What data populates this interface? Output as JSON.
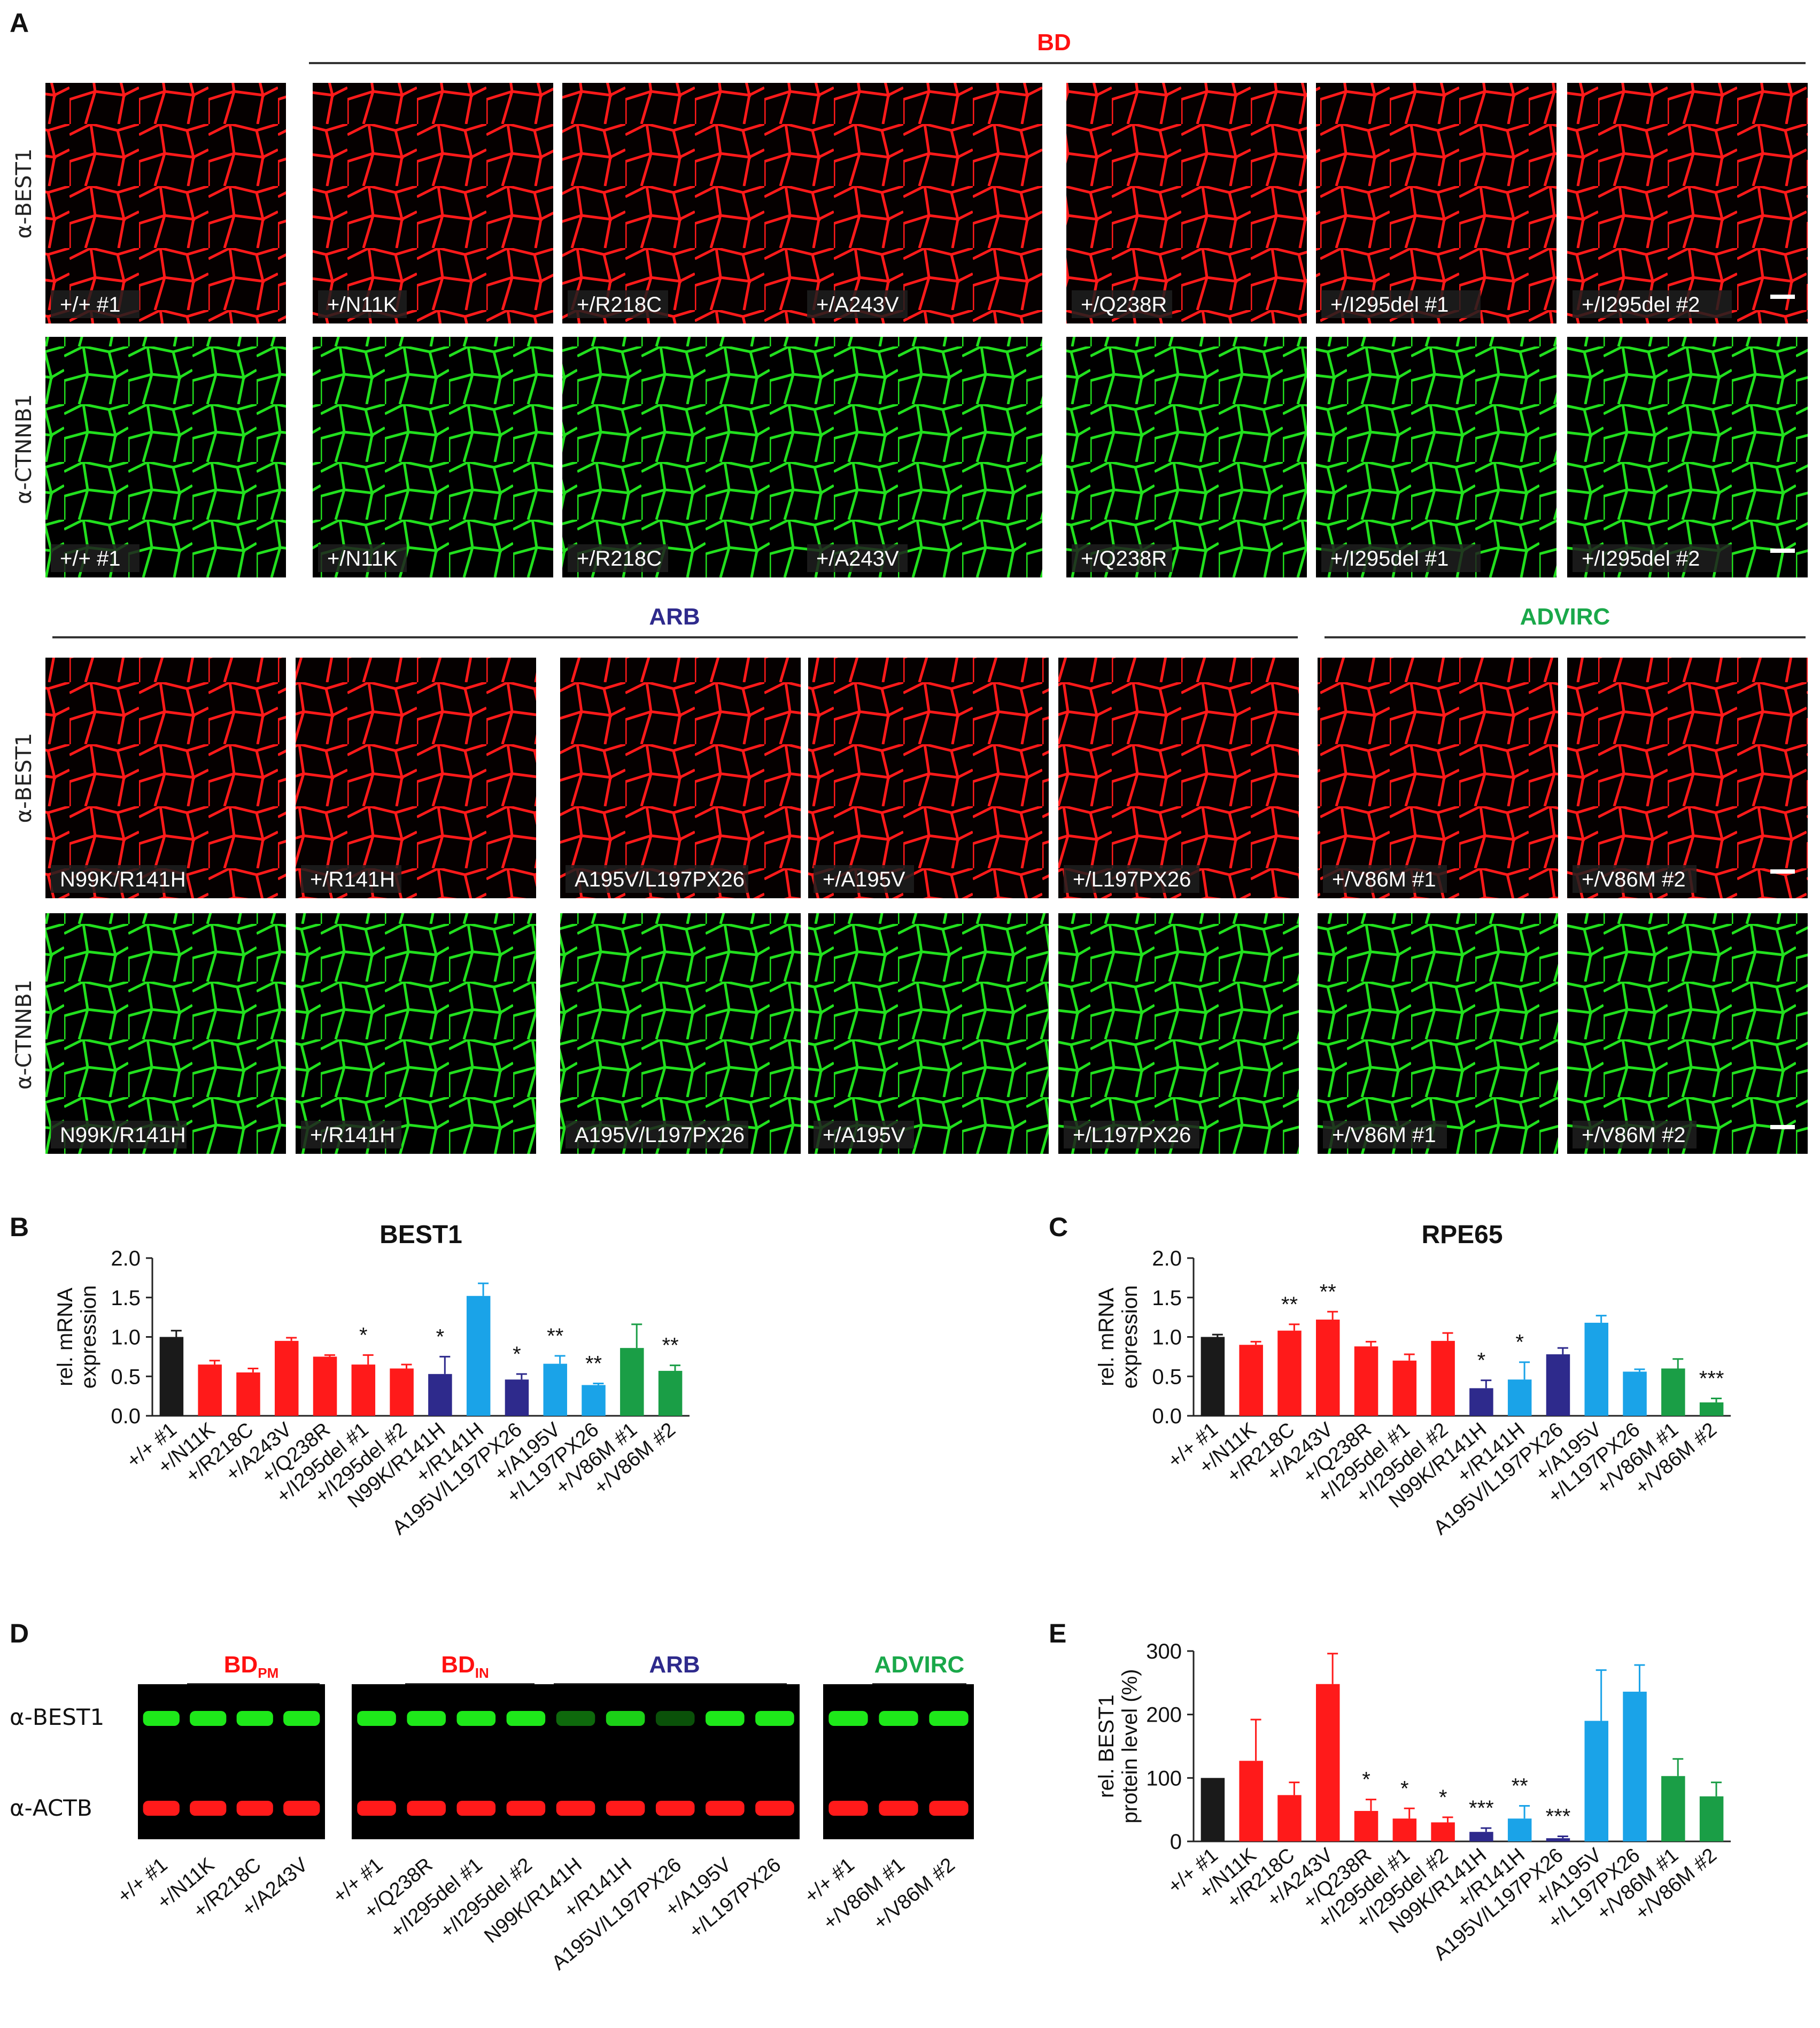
{
  "panels": {
    "A": "A",
    "B": "B",
    "C": "C",
    "D": "D",
    "E": "E"
  },
  "groups": {
    "bd": "BD",
    "arb": "ARB",
    "advirc": "ADVIRC"
  },
  "colors": {
    "bd": "#ff1010",
    "arb": "#2e2a8c",
    "advirc": "#1aa84a",
    "ctrl": "#1a1a1a",
    "arb_light": "#1aa3e8",
    "best1_stain": "#ff1a1a",
    "ctnnb1_stain": "#22e01e"
  },
  "row_labels": {
    "best1": "α-BEST1",
    "ctnnb1": "α-CTNNB1"
  },
  "image_labels": {
    "row1": [
      "+/+ #1",
      "+/N11K",
      "+/R218C",
      "+/A243V",
      "+/Q238R",
      "+/I295del #1",
      "+/I295del #2"
    ],
    "row2": [
      "N99K/R141H",
      "+/R141H",
      "A195V/L197PX26",
      "+/A195V",
      "+/L197PX26",
      "+/V86M #1",
      "+/V86M #2"
    ]
  },
  "chart_data": [
    {
      "panel": "B",
      "type": "bar",
      "title": "BEST1",
      "ylabel": "rel. mRNA expression",
      "ylabel_lines": [
        "rel. mRNA",
        "expression"
      ],
      "ylim": [
        0,
        2.0
      ],
      "yticks": [
        "0.0",
        "0.5",
        "1.0",
        "1.5",
        "2.0"
      ],
      "categories": [
        "+/+ #1",
        "+/N11K",
        "+/R218C",
        "+/A243V",
        "+/Q238R",
        "+/I295del #1",
        "+/I295del #2",
        "N99K/R141H",
        "+/R141H",
        "A195V/L197PX26",
        "+/A195V",
        "+/L197PX26",
        "+/V86M #1",
        "+/V86M #2"
      ],
      "values": [
        1.0,
        0.65,
        0.55,
        0.95,
        0.75,
        0.65,
        0.6,
        0.53,
        1.52,
        0.46,
        0.66,
        0.39,
        0.86,
        0.57
      ],
      "errors": [
        0.08,
        0.05,
        0.05,
        0.04,
        0.02,
        0.12,
        0.05,
        0.22,
        0.16,
        0.07,
        0.1,
        0.02,
        0.3,
        0.07
      ],
      "bar_colors": [
        "#1a1a1a",
        "#ff1a1a",
        "#ff1a1a",
        "#ff1a1a",
        "#ff1a1a",
        "#ff1a1a",
        "#ff1a1a",
        "#2e2a8c",
        "#1aa3e8",
        "#2e2a8c",
        "#1aa3e8",
        "#1aa3e8",
        "#1a9e46",
        "#1a9e46"
      ],
      "significance": [
        "",
        "",
        "",
        "",
        "",
        "*",
        "",
        "*",
        "",
        "*",
        "**",
        "**",
        "",
        "**"
      ]
    },
    {
      "panel": "C",
      "type": "bar",
      "title": "RPE65",
      "ylabel": "rel. mRNA expression",
      "ylabel_lines": [
        "rel. mRNA",
        "expression"
      ],
      "ylim": [
        0,
        2.0
      ],
      "yticks": [
        "0.0",
        "0.5",
        "1.0",
        "1.5",
        "2.0"
      ],
      "categories": [
        "+/+ #1",
        "+/N11K",
        "+/R218C",
        "+/A243V",
        "+/Q238R",
        "+/I295del #1",
        "+/I295del #2",
        "N99K/R141H",
        "+/R141H",
        "A195V/L197PX26",
        "+/A195V",
        "+/L197PX26",
        "+/V86M #1",
        "+/V86M #2"
      ],
      "values": [
        1.0,
        0.9,
        1.08,
        1.22,
        0.88,
        0.7,
        0.95,
        0.35,
        0.46,
        0.78,
        1.18,
        0.56,
        0.6,
        0.17
      ],
      "errors": [
        0.03,
        0.04,
        0.08,
        0.1,
        0.06,
        0.08,
        0.1,
        0.1,
        0.22,
        0.08,
        0.09,
        0.03,
        0.12,
        0.05
      ],
      "bar_colors": [
        "#1a1a1a",
        "#ff1a1a",
        "#ff1a1a",
        "#ff1a1a",
        "#ff1a1a",
        "#ff1a1a",
        "#ff1a1a",
        "#2e2a8c",
        "#1aa3e8",
        "#2e2a8c",
        "#1aa3e8",
        "#1aa3e8",
        "#1a9e46",
        "#1a9e46"
      ],
      "significance": [
        "",
        "",
        "**",
        "**",
        "",
        "",
        "",
        "*",
        "*",
        "",
        "",
        "",
        "",
        "***"
      ]
    },
    {
      "panel": "E",
      "type": "bar",
      "title": "",
      "ylabel": "rel. BEST1 protein level (%)",
      "ylabel_lines": [
        "rel. BEST1",
        "protein level (%)"
      ],
      "ylim": [
        0,
        300
      ],
      "yticks": [
        "0",
        "100",
        "200",
        "300"
      ],
      "categories": [
        "+/+ #1",
        "+/N11K",
        "+/R218C",
        "+/A243V",
        "+/Q238R",
        "+/I295del #1",
        "+/I295del #2",
        "N99K/R141H",
        "+/R141H",
        "A195V/L197PX26",
        "+/A195V",
        "+/L197PX26",
        "+/V86M #1",
        "+/V86M #2"
      ],
      "values": [
        100,
        127,
        73,
        248,
        48,
        36,
        30,
        15,
        36,
        5,
        190,
        236,
        103,
        71
      ],
      "errors": [
        0,
        65,
        20,
        48,
        18,
        16,
        8,
        6,
        20,
        3,
        80,
        42,
        27,
        22
      ],
      "bar_colors": [
        "#1a1a1a",
        "#ff1a1a",
        "#ff1a1a",
        "#ff1a1a",
        "#ff1a1a",
        "#ff1a1a",
        "#ff1a1a",
        "#2e2a8c",
        "#1aa3e8",
        "#2e2a8c",
        "#1aa3e8",
        "#1aa3e8",
        "#1a9e46",
        "#1a9e46"
      ],
      "significance": [
        "",
        "",
        "",
        "",
        "*",
        "*",
        "*",
        "***",
        "**",
        "***",
        "",
        "",
        "",
        ""
      ]
    }
  ],
  "western": {
    "row_labels": [
      "α-BEST1",
      "α-ACTB"
    ],
    "groups": {
      "bd_pm": "BD",
      "bd_pm_sub": "PM",
      "bd_in": "BD",
      "bd_in_sub": "IN",
      "arb": "ARB",
      "advirc": "ADVIRC"
    },
    "blot1_lanes": [
      "+/+ #1",
      "+/N11K",
      "+/R218C",
      "+/A243V"
    ],
    "blot2_lanes": [
      "+/+ #1",
      "+/Q238R",
      "+/I295del #1",
      "+/I295del #2",
      "N99K/R141H",
      "+/R141H",
      "A195V/L197PX26",
      "+/A195V",
      "+/L197PX26"
    ],
    "blot3_lanes": [
      "+/+ #1",
      "+/V86M #1",
      "+/V86M #2"
    ],
    "blot1_best1_intensity": [
      1.0,
      1.0,
      1.0,
      1.0
    ],
    "blot2_best1_intensity": [
      1.0,
      1.0,
      1.0,
      1.0,
      0.45,
      0.9,
      0.35,
      1.0,
      1.0
    ],
    "blot3_best1_intensity": [
      1.0,
      1.0,
      1.0
    ]
  }
}
